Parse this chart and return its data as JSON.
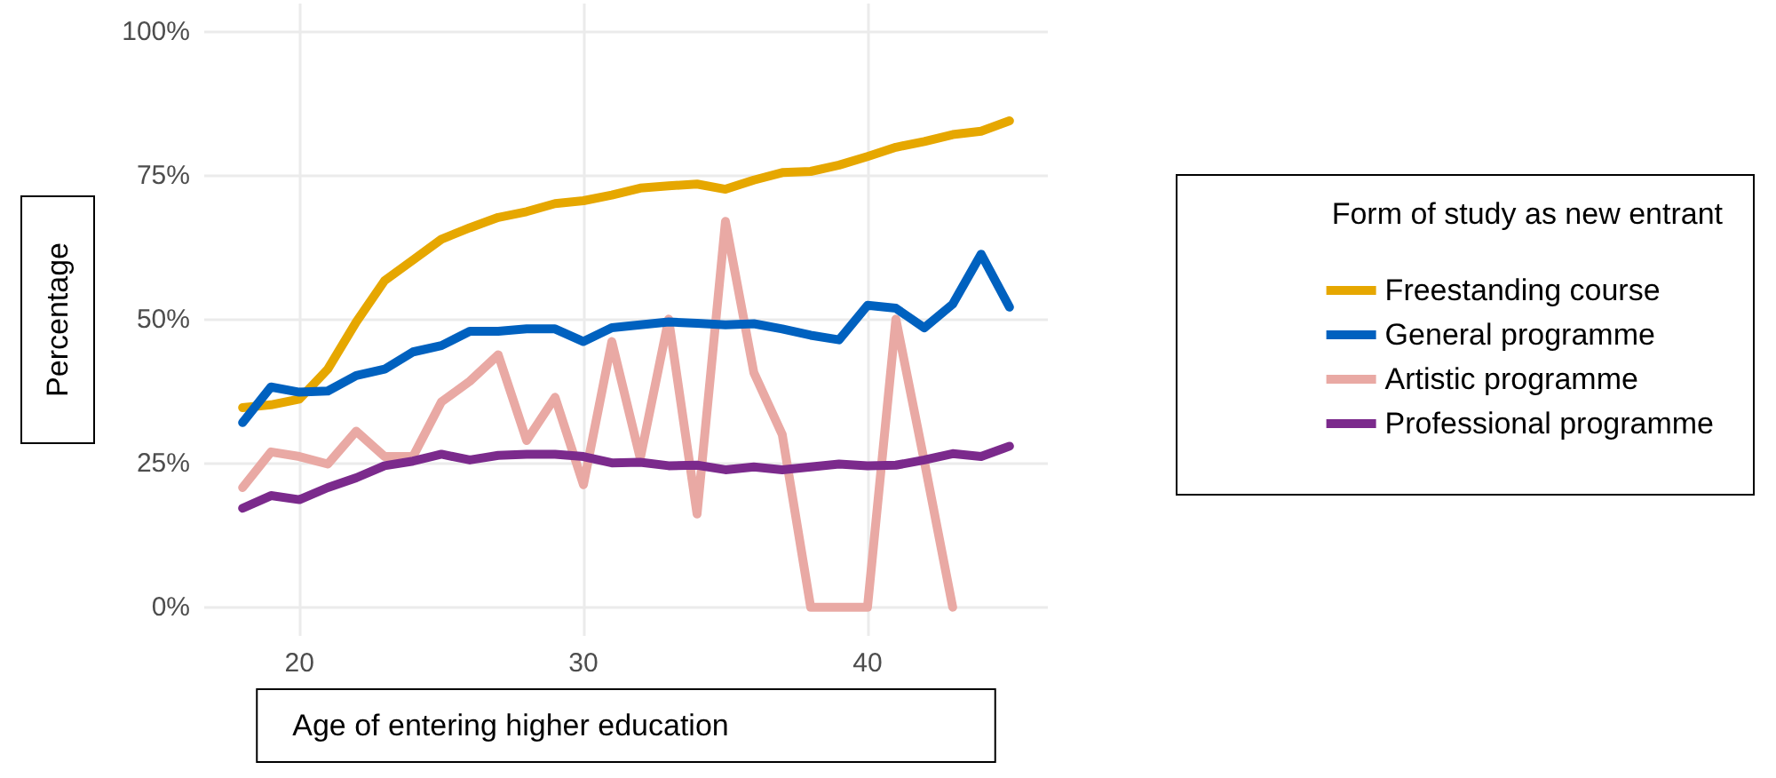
{
  "chart_data": {
    "type": "line",
    "xlabel": "Age of entering higher education",
    "ylabel": "Percentage",
    "legend_title": "Form of study as new entrant",
    "x": [
      18,
      19,
      20,
      21,
      22,
      23,
      24,
      25,
      26,
      27,
      28,
      29,
      30,
      31,
      32,
      33,
      34,
      35,
      36,
      37,
      38,
      39,
      40,
      41,
      42,
      43,
      44,
      45
    ],
    "series": [
      {
        "name": "Freestanding course",
        "color": "#e6a700",
        "values": [
          34.7,
          35.2,
          36.2,
          41.4,
          49.6,
          56.8,
          60.4,
          64,
          66,
          67.8,
          68.8,
          70.2,
          70.7,
          71.7,
          72.9,
          73.3,
          73.6,
          72.7,
          74.3,
          75.6,
          75.8,
          76.9,
          78.4,
          80,
          81,
          82.2,
          82.8,
          84.6
        ]
      },
      {
        "name": "General programme",
        "color": "#0061bf",
        "values": [
          32.1,
          38.3,
          37.4,
          37.6,
          40.3,
          41.4,
          44.4,
          45.5,
          48,
          48,
          48.4,
          48.4,
          46.2,
          48.6,
          49.1,
          49.6,
          49.4,
          49.1,
          49.3,
          48.4,
          47.3,
          46.5,
          52.5,
          52,
          48.6,
          52.7,
          61.4,
          52.2
        ]
      },
      {
        "name": "Artistic programme",
        "color": "#e9a9a4",
        "values": [
          20.8,
          27,
          26.2,
          24.9,
          30.6,
          26.2,
          26.2,
          35.7,
          39.3,
          43.9,
          29,
          36.5,
          21.3,
          46.2,
          25.9,
          50.1,
          16.2,
          67.1,
          40.8,
          30,
          0,
          0,
          0,
          50.1,
          25.4,
          0,
          null,
          null
        ]
      },
      {
        "name": "Professional programme",
        "color": "#7b2a8c",
        "values": [
          17.2,
          19.4,
          18.7,
          20.8,
          22.5,
          24.6,
          25.4,
          26.6,
          25.6,
          26.4,
          26.6,
          26.6,
          26.2,
          25.1,
          25.2,
          24.6,
          24.7,
          23.9,
          24.4,
          23.9,
          24.4,
          24.9,
          24.6,
          24.7,
          25.6,
          26.7,
          26.2,
          28
        ]
      }
    ],
    "xlim": [
      16.65,
      46.35
    ],
    "xticks": [
      20,
      30,
      40
    ],
    "ylim": [
      -5,
      105
    ],
    "yticks": [
      {
        "value": 0,
        "label": "0%"
      },
      {
        "value": 25,
        "label": "25%"
      },
      {
        "value": 50,
        "label": "50%"
      },
      {
        "value": 75,
        "label": "75%"
      },
      {
        "value": 100,
        "label": "100%"
      }
    ],
    "grid": true,
    "legend": "right",
    "marker": "none",
    "line_style": "solid"
  }
}
